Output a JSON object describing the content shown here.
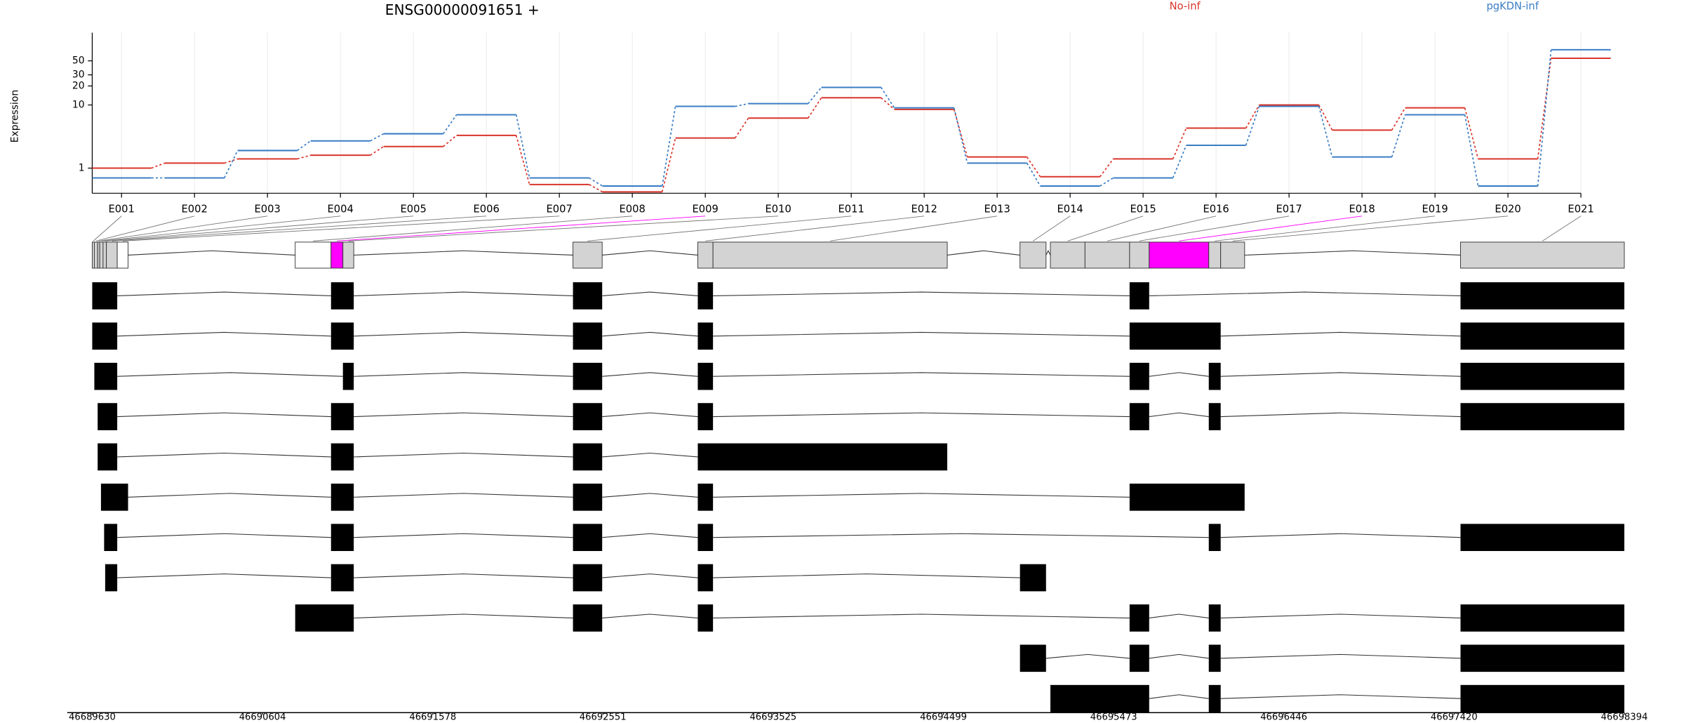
{
  "chart_data": {
    "type": "line",
    "title": "ENSG00000091651 +",
    "y_label": "Expression",
    "log_y": true,
    "grid": true,
    "categories": [
      "E001",
      "E002",
      "E003",
      "E004",
      "E005",
      "E006",
      "E007",
      "E008",
      "E009",
      "E010",
      "E011",
      "E012",
      "E013",
      "E014",
      "E015",
      "E016",
      "E017",
      "E018",
      "E019",
      "E020",
      "E021"
    ],
    "series": [
      {
        "name": "No-inf",
        "color": "#d9342b",
        "values": [
          1.0,
          1.2,
          1.4,
          1.6,
          2.2,
          3.3,
          0.55,
          0.42,
          3.0,
          6.2,
          13,
          8.5,
          1.5,
          0.73,
          1.4,
          4.3,
          10,
          4,
          9,
          1.4,
          55
        ]
      },
      {
        "name": "pgKDN-inf",
        "color": "#3a7dc4",
        "values": [
          0.7,
          0.7,
          1.9,
          2.7,
          3.5,
          7,
          0.7,
          0.52,
          9.5,
          10.5,
          19,
          9,
          1.2,
          0.52,
          0.7,
          2.3,
          9.5,
          1.5,
          7,
          0.52,
          75
        ]
      }
    ],
    "ylim": [
      0.4,
      140
    ],
    "yticks": [
      1,
      10,
      20,
      30,
      50
    ]
  },
  "gene_model": {
    "xlim": [
      46689630,
      46698394
    ],
    "xticks": [
      46689630,
      46690604,
      46691578,
      46692551,
      46693525,
      46694499,
      46695473,
      46696446,
      46697420,
      46698394
    ],
    "exon_color": "#d3d3d3",
    "significant_color": "#ff00ff",
    "transcript_color": "#000000",
    "bins": [
      {
        "start": 46689630,
        "end": 46689642,
        "fill": "#d3d3d3"
      },
      {
        "start": 46689642,
        "end": 46689661,
        "fill": "#d3d3d3"
      },
      {
        "start": 46689661,
        "end": 46689673,
        "fill": "#d3d3d3"
      },
      {
        "start": 46689673,
        "end": 46689692,
        "fill": "#d3d3d3"
      },
      {
        "start": 46689692,
        "end": 46689711,
        "fill": "#d3d3d3"
      },
      {
        "start": 46689711,
        "end": 46689773,
        "fill": "#d3d3d3"
      },
      {
        "start": 46689773,
        "end": 46689835,
        "fill": "#ffffff"
      },
      {
        "start": 46690791,
        "end": 46690996,
        "fill": "#ffffff"
      },
      {
        "start": 46690996,
        "end": 46691064,
        "fill": "#ff00ff"
      },
      {
        "start": 46691064,
        "end": 46691126,
        "fill": "#d3d3d3"
      },
      {
        "start": 46692380,
        "end": 46692547,
        "fill": "#d3d3d3"
      },
      {
        "start": 46693094,
        "end": 46693181,
        "fill": "#d3d3d3"
      },
      {
        "start": 46693181,
        "end": 46694521,
        "fill": "#d3d3d3"
      },
      {
        "start": 46694937,
        "end": 46695086,
        "fill": "#d3d3d3"
      },
      {
        "start": 46695111,
        "end": 46695309,
        "fill": "#d3d3d3"
      },
      {
        "start": 46695309,
        "end": 46695564,
        "fill": "#d3d3d3"
      },
      {
        "start": 46695564,
        "end": 46695676,
        "fill": "#d3d3d3"
      },
      {
        "start": 46695676,
        "end": 46696017,
        "fill": "#ff00ff"
      },
      {
        "start": 46696017,
        "end": 46696085,
        "fill": "#d3d3d3"
      },
      {
        "start": 46696085,
        "end": 46696222,
        "fill": "#d3d3d3"
      },
      {
        "start": 46697457,
        "end": 46698394,
        "fill": "#d3d3d3"
      }
    ],
    "transcripts": [
      [
        [
          46689630,
          46689773
        ],
        [
          46690996,
          46691126
        ],
        [
          46692380,
          46692547
        ],
        [
          46693094,
          46693181
        ],
        [
          46695564,
          46695676
        ],
        [
          46697457,
          46698394
        ]
      ],
      [
        [
          46689630,
          46689773
        ],
        [
          46690996,
          46691126
        ],
        [
          46692380,
          46692547
        ],
        [
          46693094,
          46693181
        ],
        [
          46695564,
          46696085
        ],
        [
          46697457,
          46698394
        ]
      ],
      [
        [
          46689642,
          46689773
        ],
        [
          46691064,
          46691126
        ],
        [
          46692380,
          46692547
        ],
        [
          46693094,
          46693181
        ],
        [
          46695564,
          46695676
        ],
        [
          46696017,
          46696085
        ],
        [
          46697457,
          46698394
        ]
      ],
      [
        [
          46689661,
          46689773
        ],
        [
          46690996,
          46691126
        ],
        [
          46692380,
          46692547
        ],
        [
          46693094,
          46693181
        ],
        [
          46695564,
          46695676
        ],
        [
          46696017,
          46696085
        ],
        [
          46697457,
          46698394
        ]
      ],
      [
        [
          46689661,
          46689773
        ],
        [
          46690996,
          46691126
        ],
        [
          46692380,
          46692547
        ],
        [
          46693094,
          46694521
        ]
      ],
      [
        [
          46689680,
          46689835
        ],
        [
          46690996,
          46691126
        ],
        [
          46692380,
          46692547
        ],
        [
          46693094,
          46693181
        ],
        [
          46695564,
          46696222
        ]
      ],
      [
        [
          46689698,
          46689773
        ],
        [
          46690996,
          46691126
        ],
        [
          46692380,
          46692547
        ],
        [
          46693094,
          46693181
        ],
        [
          46696017,
          46696085
        ],
        [
          46697457,
          46698394
        ]
      ],
      [
        [
          46689704,
          46689773
        ],
        [
          46690996,
          46691126
        ],
        [
          46692380,
          46692547
        ],
        [
          46693094,
          46693181
        ],
        [
          46694937,
          46695086
        ]
      ],
      [
        [
          46690791,
          46691126
        ],
        [
          46692380,
          46692547
        ],
        [
          46693094,
          46693181
        ],
        [
          46695564,
          46695676
        ],
        [
          46696017,
          46696085
        ],
        [
          46697457,
          46698394
        ]
      ],
      [
        [
          46694937,
          46695086
        ],
        [
          46695564,
          46695676
        ],
        [
          46696017,
          46696085
        ],
        [
          46697457,
          46698394
        ]
      ],
      [
        [
          46695111,
          46695676
        ],
        [
          46696017,
          46696085
        ],
        [
          46697457,
          46698394
        ]
      ]
    ]
  }
}
